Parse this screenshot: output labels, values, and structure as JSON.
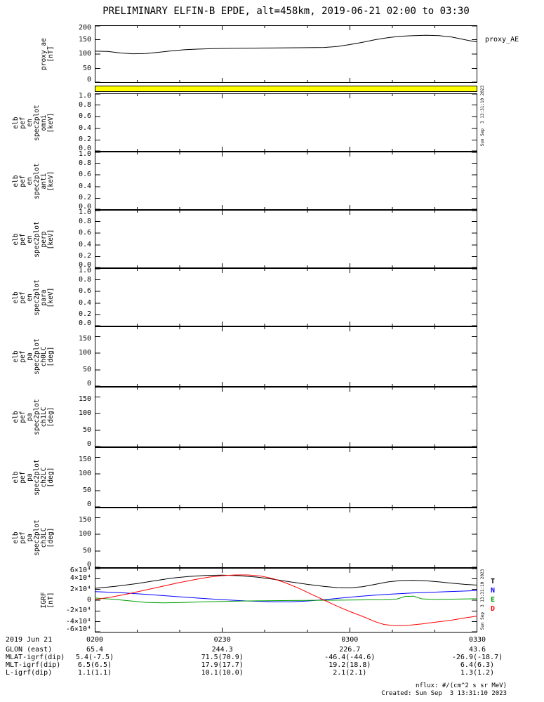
{
  "chart_data": {
    "type": "line",
    "title": "PRELIMINARY ELFIN-B EPDE, alt=458km, 2019-06-21 02:00 to 03:30",
    "x_axis": {
      "unit": "UT (HHMM)",
      "start_minute": 0,
      "end_minute": 90,
      "ticks": [
        {
          "label": "0200",
          "minute": 0
        },
        {
          "label": "0230",
          "minute": 30
        },
        {
          "label": "0300",
          "minute": 60
        },
        {
          "label": "0330",
          "minute": 90
        }
      ]
    },
    "legend_position": "right",
    "grid": false,
    "panels": [
      {
        "id": "proxy_ae",
        "type": "line",
        "label_lines": [
          "proxy_ae",
          "[nT]"
        ],
        "ylim": [
          0,
          200
        ],
        "yticks": [
          {
            "label": "200",
            "v": 200
          },
          {
            "label": "150",
            "v": 150
          },
          {
            "label": "100",
            "v": 100
          },
          {
            "label": "50",
            "v": 50
          },
          {
            "label": "0",
            "v": 0
          }
        ],
        "right_label": "proxy_AE",
        "series": [
          {
            "name": "proxy_AE",
            "color": "#000000",
            "points": [
              [
                0,
                110
              ],
              [
                3,
                109
              ],
              [
                6,
                104
              ],
              [
                9,
                101
              ],
              [
                12,
                102
              ],
              [
                15,
                106
              ],
              [
                18,
                111
              ],
              [
                21,
                115
              ],
              [
                24,
                117
              ],
              [
                28,
                119
              ],
              [
                33,
                120
              ],
              [
                40,
                121
              ],
              [
                48,
                122
              ],
              [
                54,
                123
              ],
              [
                57,
                126
              ],
              [
                60,
                133
              ],
              [
                63,
                141
              ],
              [
                66,
                150
              ],
              [
                69,
                157
              ],
              [
                72,
                162
              ],
              [
                75,
                164
              ],
              [
                78,
                165
              ],
              [
                81,
                164
              ],
              [
                84,
                159
              ],
              [
                86,
                153
              ],
              [
                88,
                147
              ],
              [
                90,
                142
              ]
            ]
          }
        ]
      },
      {
        "id": "spec_quality_flag_bar",
        "type": "flag",
        "color": "#ffff00"
      },
      {
        "id": "elb_pef_en_spec2plot_omni",
        "type": "empty",
        "label_lines": [
          "elb",
          "pef",
          "en",
          "spec2plot",
          "omni",
          "[keV]"
        ],
        "ylim": [
          0,
          1
        ],
        "yticks": [
          {
            "label": "1.0",
            "v": 1.0
          },
          {
            "label": "0.8",
            "v": 0.8
          },
          {
            "label": "0.6",
            "v": 0.6
          },
          {
            "label": "0.4",
            "v": 0.4
          },
          {
            "label": "0.2",
            "v": 0.2
          },
          {
            "label": "0.0",
            "v": 0.0
          }
        ],
        "series": []
      },
      {
        "id": "elb_pef_en_spec2plot_anti",
        "type": "empty",
        "label_lines": [
          "elb",
          "pef",
          "en",
          "spec2plot",
          "anti",
          "[keV]"
        ],
        "ylim": [
          0,
          1
        ],
        "yticks": [
          {
            "label": "1.0",
            "v": 1.0
          },
          {
            "label": "0.8",
            "v": 0.8
          },
          {
            "label": "0.6",
            "v": 0.6
          },
          {
            "label": "0.4",
            "v": 0.4
          },
          {
            "label": "0.2",
            "v": 0.2
          },
          {
            "label": "0.0",
            "v": 0.0
          }
        ],
        "series": []
      },
      {
        "id": "elb_pef_en_spec2plot_perp",
        "type": "empty",
        "label_lines": [
          "elb",
          "pef",
          "en",
          "spec2plot",
          "perp",
          "[keV]"
        ],
        "ylim": [
          0,
          1
        ],
        "yticks": [
          {
            "label": "1.0",
            "v": 1.0
          },
          {
            "label": "0.8",
            "v": 0.8
          },
          {
            "label": "0.6",
            "v": 0.6
          },
          {
            "label": "0.4",
            "v": 0.4
          },
          {
            "label": "0.2",
            "v": 0.2
          },
          {
            "label": "0.0",
            "v": 0.0
          }
        ],
        "series": []
      },
      {
        "id": "elb_pef_en_spec2plot_para",
        "type": "empty",
        "label_lines": [
          "elb",
          "pef",
          "en",
          "spec2plot",
          "para",
          "[keV]"
        ],
        "ylim": [
          0,
          1
        ],
        "yticks": [
          {
            "label": "1.0",
            "v": 1.0
          },
          {
            "label": "0.8",
            "v": 0.8
          },
          {
            "label": "0.6",
            "v": 0.6
          },
          {
            "label": "0.4",
            "v": 0.4
          },
          {
            "label": "0.2",
            "v": 0.2
          },
          {
            "label": "0.0",
            "v": 0.0
          }
        ],
        "series": []
      },
      {
        "id": "elb_pef_pa_spec2plot_ch0LC",
        "type": "empty",
        "label_lines": [
          "elb",
          "pef",
          "pa",
          "spec2plot",
          "ch0LC",
          "[deg]"
        ],
        "ylim": [
          0,
          180
        ],
        "yticks": [
          {
            "label": "150",
            "v": 150
          },
          {
            "label": "100",
            "v": 100
          },
          {
            "label": "50",
            "v": 50
          },
          {
            "label": "0",
            "v": 0
          }
        ],
        "series": []
      },
      {
        "id": "elb_pef_pa_spec2plot_ch1LC",
        "type": "empty",
        "label_lines": [
          "elb",
          "pef",
          "pa",
          "spec2plot",
          "ch1LC",
          "[deg]"
        ],
        "ylim": [
          0,
          180
        ],
        "yticks": [
          {
            "label": "150",
            "v": 150
          },
          {
            "label": "100",
            "v": 100
          },
          {
            "label": "50",
            "v": 50
          },
          {
            "label": "0",
            "v": 0
          }
        ],
        "series": []
      },
      {
        "id": "elb_pef_pa_spec2plot_ch2LC",
        "type": "empty",
        "label_lines": [
          "elb",
          "pef",
          "pa",
          "spec2plot",
          "ch2LC",
          "[deg]"
        ],
        "ylim": [
          0,
          180
        ],
        "yticks": [
          {
            "label": "150",
            "v": 150
          },
          {
            "label": "100",
            "v": 100
          },
          {
            "label": "50",
            "v": 50
          },
          {
            "label": "0",
            "v": 0
          }
        ],
        "series": []
      },
      {
        "id": "elb_pef_pa_spec2plot_ch3LC",
        "type": "empty",
        "label_lines": [
          "elb",
          "pef",
          "pa",
          "spec2plot",
          "ch3LC",
          "[deg]"
        ],
        "ylim": [
          0,
          180
        ],
        "yticks": [
          {
            "label": "150",
            "v": 150
          },
          {
            "label": "100",
            "v": 100
          },
          {
            "label": "50",
            "v": 50
          },
          {
            "label": "0",
            "v": 0
          }
        ],
        "series": []
      },
      {
        "id": "igrf",
        "type": "line",
        "label_lines": [
          "IGRF",
          "[nT]"
        ],
        "ylim": [
          -60000,
          60000
        ],
        "yticks": [
          {
            "label": "6×10⁴",
            "v": 60000
          },
          {
            "label": "4×10⁴",
            "v": 40000
          },
          {
            "label": "2×10⁴",
            "v": 20000
          },
          {
            "label": "0",
            "v": 0
          },
          {
            "label": "-2×10⁴",
            "v": -20000
          },
          {
            "label": "-4×10⁴",
            "v": -40000
          },
          {
            "label": "-6×10⁴",
            "v": -60000
          }
        ],
        "right_legend": [
          {
            "label": "T",
            "color": "#000000"
          },
          {
            "label": "N",
            "color": "#0000ff"
          },
          {
            "label": "E",
            "color": "#00a000"
          },
          {
            "label": "D",
            "color": "#ff0000"
          }
        ],
        "series": [
          {
            "name": "T",
            "color": "#000000",
            "points": [
              [
                0,
                22000
              ],
              [
                5,
                26000
              ],
              [
                10,
                31000
              ],
              [
                14,
                36000
              ],
              [
                18,
                41000
              ],
              [
                22,
                44000
              ],
              [
                26,
                46000
              ],
              [
                30,
                46500
              ],
              [
                34,
                45500
              ],
              [
                38,
                43000
              ],
              [
                42,
                39000
              ],
              [
                46,
                34000
              ],
              [
                50,
                29500
              ],
              [
                54,
                25500
              ],
              [
                57,
                23500
              ],
              [
                60,
                23000
              ],
              [
                63,
                25000
              ],
              [
                66,
                29500
              ],
              [
                69,
                34000
              ],
              [
                72,
                36500
              ],
              [
                75,
                37000
              ],
              [
                78,
                36000
              ],
              [
                81,
                34000
              ],
              [
                84,
                31500
              ],
              [
                87,
                29500
              ],
              [
                90,
                28000
              ]
            ]
          },
          {
            "name": "N",
            "color": "#0000ff",
            "points": [
              [
                0,
                16000
              ],
              [
                6,
                14000
              ],
              [
                12,
                11000
              ],
              [
                18,
                7500
              ],
              [
                24,
                4000
              ],
              [
                30,
                1000
              ],
              [
                36,
                -1500
              ],
              [
                42,
                -3000
              ],
              [
                46,
                -3000
              ],
              [
                50,
                -1500
              ],
              [
                54,
                1000
              ],
              [
                58,
                4000
              ],
              [
                62,
                7000
              ],
              [
                66,
                9500
              ],
              [
                70,
                11500
              ],
              [
                75,
                13500
              ],
              [
                80,
                15000
              ],
              [
                85,
                16500
              ],
              [
                90,
                18000
              ]
            ]
          },
          {
            "name": "E",
            "color": "#00a000",
            "points": [
              [
                0,
                4000
              ],
              [
                4,
                2000
              ],
              [
                8,
                -1000
              ],
              [
                12,
                -4000
              ],
              [
                16,
                -5000
              ],
              [
                20,
                -4500
              ],
              [
                26,
                -3000
              ],
              [
                32,
                -2000
              ],
              [
                38,
                -1200
              ],
              [
                44,
                -700
              ],
              [
                50,
                -300
              ],
              [
                56,
                0
              ],
              [
                62,
                500
              ],
              [
                68,
                1000
              ],
              [
                71,
                2000
              ],
              [
                73,
                7000
              ],
              [
                75,
                7500
              ],
              [
                77,
                2500
              ],
              [
                80,
                1500
              ],
              [
                84,
                2000
              ],
              [
                88,
                2500
              ],
              [
                90,
                2800
              ]
            ]
          },
          {
            "name": "D",
            "color": "#ff0000",
            "points": [
              [
                0,
                1000
              ],
              [
                4,
                6000
              ],
              [
                8,
                12000
              ],
              [
                12,
                19000
              ],
              [
                16,
                26000
              ],
              [
                20,
                33000
              ],
              [
                24,
                39000
              ],
              [
                27,
                43000
              ],
              [
                30,
                45500
              ],
              [
                33,
                47000
              ],
              [
                36,
                47000
              ],
              [
                39,
                45000
              ],
              [
                42,
                40000
              ],
              [
                45,
                32000
              ],
              [
                48,
                22000
              ],
              [
                51,
                11000
              ],
              [
                54,
                0
              ],
              [
                57,
                -11000
              ],
              [
                60,
                -21000
              ],
              [
                63,
                -30000
              ],
              [
                66,
                -40000
              ],
              [
                68,
                -45000
              ],
              [
                70,
                -47000
              ],
              [
                72,
                -47500
              ],
              [
                74,
                -46500
              ],
              [
                77,
                -44000
              ],
              [
                80,
                -41000
              ],
              [
                84,
                -37000
              ],
              [
                87,
                -33000
              ],
              [
                90,
                -29500
              ]
            ]
          }
        ]
      }
    ]
  },
  "footer": {
    "rows": [
      {
        "label": "2019 Jun 21",
        "values": [
          "0200",
          "0230",
          "0300",
          "0330"
        ]
      },
      {
        "label": "GLON (east)",
        "values": [
          "65.4",
          "244.3",
          "226.7",
          "43.6"
        ]
      },
      {
        "label": "MLAT-igrf(dip)",
        "values": [
          "5.4(-7.5)",
          "71.5(70.9)",
          "-46.4(-44.6)",
          "-26.9(-18.7)"
        ]
      },
      {
        "label": "MLT-igrf(dip)",
        "values": [
          "6.5(6.5)",
          "17.9(17.7)",
          "19.2(18.8)",
          "6.4(6.3)"
        ]
      },
      {
        "label": "L-igrf(dip)",
        "values": [
          "1.1(1.1)",
          "10.1(10.0)",
          "2.1(2.1)",
          "1.3(1.2)"
        ]
      }
    ]
  },
  "notes": {
    "nflux": "nflux: #/(cm^2 s sr MeV)",
    "created": "Created: Sun Sep  3 13:31:10 2023",
    "side_timestamp": "Sun Sep  3 13:31:10 2023"
  }
}
